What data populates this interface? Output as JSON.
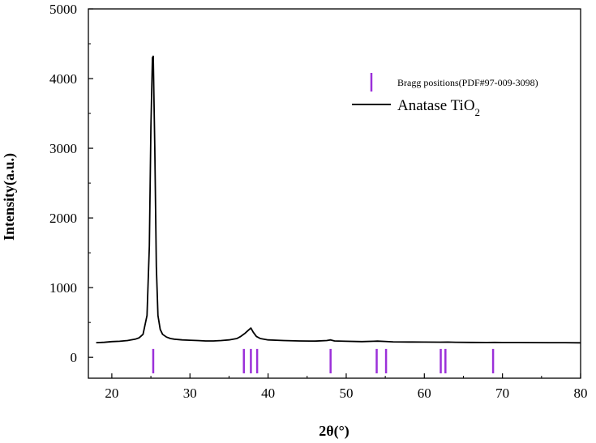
{
  "chart_data": {
    "type": "line",
    "title": "",
    "xlabel": "2θ(°)",
    "ylabel": "Intensity(a.u.)",
    "xlim": [
      17,
      80
    ],
    "ylim": [
      -300,
      5000
    ],
    "xticks": [
      20,
      30,
      40,
      50,
      60,
      70,
      80
    ],
    "yticks": [
      0,
      1000,
      2000,
      3000,
      4000,
      5000
    ],
    "legend": {
      "placement": "top-right",
      "entries": [
        {
          "label": "Bragg positions(PDF#97-009-3098)",
          "marker": "bar",
          "color": "#9b30d9"
        },
        {
          "label": "Anatase TiO",
          "subscript": "2",
          "marker": "line",
          "color": "#000000"
        }
      ]
    },
    "series": [
      {
        "name": "Anatase TiO2",
        "color": "#000000",
        "x": [
          18,
          19,
          20,
          21,
          22,
          23,
          23.5,
          24,
          24.5,
          24.8,
          25.0,
          25.2,
          25.3,
          25.5,
          25.7,
          25.9,
          26.2,
          26.5,
          27,
          27.5,
          28,
          29,
          30,
          31,
          32,
          33,
          34,
          35,
          36,
          36.5,
          37,
          37.5,
          37.8,
          38.1,
          38.5,
          39,
          40,
          42,
          44,
          46,
          47.5,
          48.0,
          48.5,
          50,
          52,
          53.5,
          54,
          55,
          56,
          58,
          60,
          62,
          63,
          64,
          66,
          68,
          69,
          70,
          72,
          74,
          76,
          78,
          80
        ],
        "y": [
          210,
          215,
          225,
          230,
          240,
          260,
          280,
          330,
          600,
          1600,
          3300,
          4300,
          4320,
          3000,
          1300,
          600,
          400,
          330,
          290,
          270,
          260,
          250,
          245,
          240,
          235,
          235,
          240,
          250,
          270,
          300,
          340,
          390,
          420,
          360,
          300,
          270,
          250,
          240,
          235,
          232,
          240,
          250,
          235,
          230,
          225,
          230,
          232,
          228,
          222,
          220,
          218,
          217,
          218,
          216,
          214,
          213,
          214,
          213,
          212,
          211,
          210,
          210,
          208
        ]
      }
    ],
    "bragg_positions": [
      25.3,
      36.9,
      37.8,
      38.6,
      48.0,
      53.9,
      55.1,
      62.1,
      62.7,
      68.8
    ],
    "bragg_color": "#9b30d9"
  }
}
